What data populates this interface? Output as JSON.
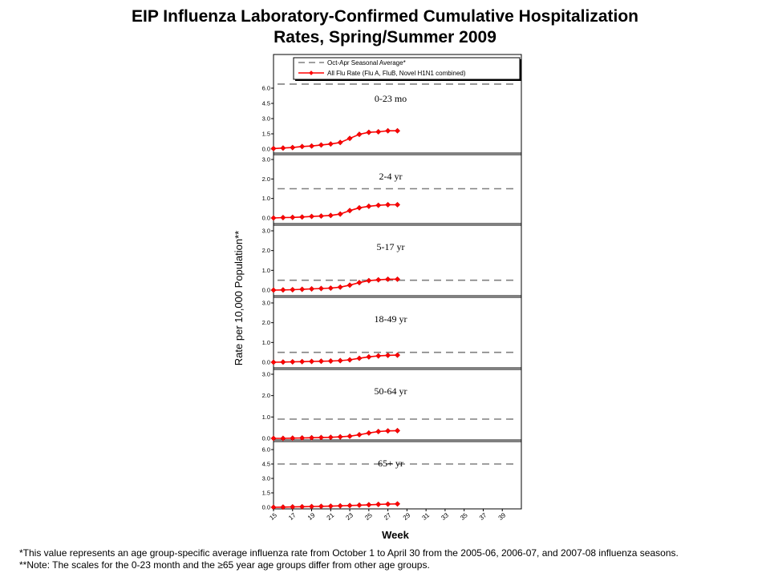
{
  "title_line1": "EIP Influenza Laboratory-Confirmed Cumulative Hospitalization",
  "title_line2": "Rates, Spring/Summer 2009",
  "footnote1": "*This value represents an age group-specific average influenza rate from October 1 to April 30 from the 2005-06, 2006-07, and 2007-08 influenza seasons.",
  "footnote2": "**Note: The scales for the 0-23 month and the ≥65 year age groups differ from other age groups.",
  "colors": {
    "series": "#ff0000",
    "series_marker": "#cc0000",
    "average_line": "#808080",
    "axis": "#000000"
  },
  "chart_data": {
    "type": "line",
    "ylabel": "Rate per 10,000 Population**",
    "xlabel": "Week",
    "xlim": [
      15,
      41
    ],
    "x_ticks": [
      15,
      17,
      19,
      21,
      23,
      25,
      27,
      29,
      31,
      33,
      35,
      37,
      39
    ],
    "x": [
      15,
      16,
      17,
      18,
      19,
      20,
      21,
      22,
      23,
      24,
      25,
      26,
      27,
      28
    ],
    "legend": {
      "placement": "top",
      "entries": [
        {
          "label": "Oct-Apr Seasonal Average*",
          "style": "dashed"
        },
        {
          "label": "All Flu Rate (Flu A, FluB, Novel H1N1 combined)",
          "style": "line-markers"
        }
      ]
    },
    "panels": [
      {
        "label": "0-23 mo",
        "ylim": [
          0,
          6.0
        ],
        "y_ticks": [
          "0.0",
          "1.5",
          "3.0",
          "4.5",
          "6.0"
        ],
        "seasonal_average": 6.4,
        "values": [
          0.05,
          0.1,
          0.15,
          0.25,
          0.3,
          0.4,
          0.5,
          0.65,
          1.05,
          1.45,
          1.65,
          1.7,
          1.8,
          1.8
        ]
      },
      {
        "label": "2-4 yr",
        "ylim": [
          0,
          3.0
        ],
        "y_ticks": [
          "0.0",
          "1.0",
          "2.0",
          "3.0"
        ],
        "seasonal_average": 1.5,
        "values": [
          0.0,
          0.02,
          0.03,
          0.05,
          0.08,
          0.1,
          0.13,
          0.2,
          0.38,
          0.52,
          0.6,
          0.65,
          0.68,
          0.68
        ]
      },
      {
        "label": "5-17 yr",
        "ylim": [
          0,
          3.0
        ],
        "y_ticks": [
          "0.0",
          "1.0",
          "2.0",
          "3.0"
        ],
        "seasonal_average": 0.5,
        "values": [
          0.0,
          0.01,
          0.02,
          0.04,
          0.06,
          0.08,
          0.1,
          0.15,
          0.25,
          0.38,
          0.48,
          0.52,
          0.55,
          0.55
        ]
      },
      {
        "label": "18-49 yr",
        "ylim": [
          0,
          3.0
        ],
        "y_ticks": [
          "0.0",
          "1.0",
          "2.0",
          "3.0"
        ],
        "seasonal_average": 0.5,
        "values": [
          0.0,
          0.01,
          0.02,
          0.03,
          0.04,
          0.05,
          0.06,
          0.08,
          0.12,
          0.2,
          0.27,
          0.32,
          0.35,
          0.36
        ]
      },
      {
        "label": "50-64 yr",
        "ylim": [
          0,
          3.0
        ],
        "y_ticks": [
          "0.0",
          "1.0",
          "2.0",
          "3.0"
        ],
        "seasonal_average": 0.9,
        "values": [
          0.0,
          0.0,
          0.01,
          0.02,
          0.03,
          0.04,
          0.05,
          0.07,
          0.1,
          0.17,
          0.25,
          0.32,
          0.35,
          0.36
        ]
      },
      {
        "label": "65+ yr",
        "ylim": [
          0,
          6.0
        ],
        "y_ticks": [
          "0.0",
          "1.5",
          "3.0",
          "4.5",
          "6.0"
        ],
        "seasonal_average": 4.5,
        "values": [
          0.0,
          0.02,
          0.04,
          0.06,
          0.08,
          0.1,
          0.12,
          0.15,
          0.18,
          0.22,
          0.26,
          0.3,
          0.33,
          0.35
        ]
      }
    ]
  }
}
